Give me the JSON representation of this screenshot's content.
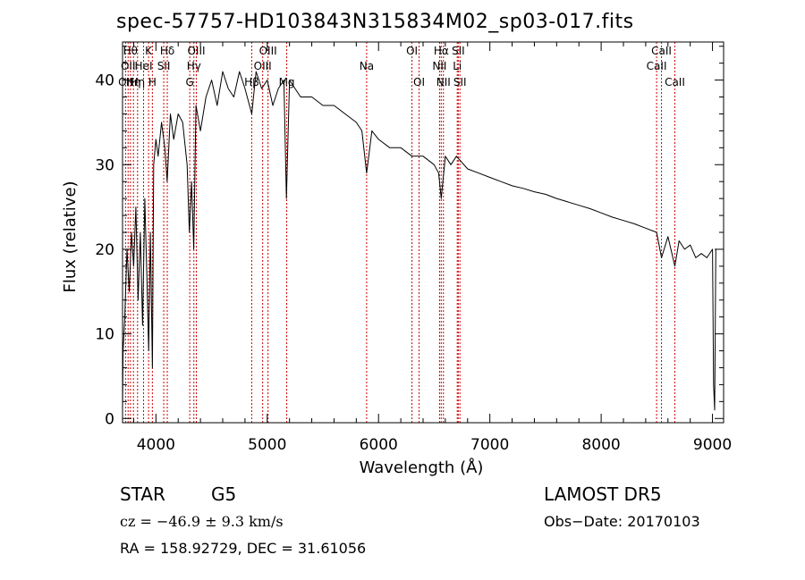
{
  "header": {
    "title": "spec-57757-HD103843N315834M02_sp03-017.fits"
  },
  "footer": {
    "class_label": "STAR",
    "subclass": "G5",
    "survey": "LAMOST DR5",
    "cz": "cz = −46.9 ± 9.3 km/s",
    "obs_date": "Obs−Date: 20170103",
    "coords": "RA = 158.92729, DEC =  31.61056"
  },
  "colors": {
    "line_marker": "#cc0000",
    "spectrum": "#000000",
    "axes": "#000000"
  },
  "chart_data": {
    "type": "line",
    "xlabel": "Wavelength (Å)",
    "ylabel": "Flux (relative)",
    "xlim": [
      3700,
      9100
    ],
    "ylim": [
      -0.5,
      44.5
    ],
    "xticks": [
      4000,
      5000,
      6000,
      7000,
      8000,
      9000
    ],
    "yticks": [
      0,
      10,
      20,
      30,
      40
    ],
    "grid": false,
    "series": [
      {
        "x": [
          3700,
          3705,
          3720,
          3740,
          3760,
          3780,
          3800,
          3820,
          3840,
          3860,
          3880,
          3900,
          3920,
          3935,
          3950,
          3968,
          3980,
          4000,
          4020,
          4050,
          4080,
          4101,
          4130,
          4160,
          4200,
          4240,
          4280,
          4300,
          4320,
          4340,
          4360,
          4400,
          4450,
          4500,
          4550,
          4600,
          4650,
          4700,
          4750,
          4800,
          4861,
          4900,
          4950,
          5000,
          5050,
          5100,
          5150,
          5172,
          5200,
          5250,
          5300,
          5400,
          5500,
          5600,
          5700,
          5800,
          5850,
          5893,
          5940,
          6000,
          6100,
          6200,
          6300,
          6400,
          6500,
          6540,
          6563,
          6600,
          6650,
          6700,
          6800,
          6900,
          7000,
          7100,
          7200,
          7300,
          7400,
          7500,
          7600,
          7700,
          7800,
          7900,
          8000,
          8100,
          8200,
          8300,
          8400,
          8498,
          8542,
          8600,
          8662,
          8700,
          8750,
          8800,
          8850,
          8900,
          8950,
          9000,
          9010,
          9020,
          9030
        ],
        "values": [
          1,
          8,
          12,
          20,
          15,
          22,
          18,
          25,
          14,
          22,
          11,
          26,
          16,
          8,
          22,
          6,
          30,
          33,
          31,
          35,
          32,
          28,
          36,
          33,
          36,
          35,
          30,
          22,
          28,
          20,
          37,
          34,
          38,
          40,
          37,
          41,
          39,
          38,
          41,
          39,
          36,
          41,
          39,
          40,
          37,
          39,
          40,
          26,
          40,
          39,
          38,
          38,
          37,
          37,
          36,
          35,
          34,
          29,
          34,
          33,
          32,
          32,
          31,
          31,
          30,
          29,
          26,
          31,
          30,
          31,
          29.5,
          29,
          28.5,
          28,
          27.5,
          27.2,
          26.8,
          26.5,
          26,
          25.6,
          25.2,
          24.8,
          24.3,
          23.8,
          23.4,
          23,
          22.5,
          22,
          19,
          21.5,
          18,
          21,
          20,
          20.5,
          19,
          19.5,
          19,
          20,
          4,
          1,
          20
        ]
      }
    ],
    "line_markers": [
      {
        "wavelength": 3727,
        "label": "OII",
        "row": 2
      },
      {
        "wavelength": 3750,
        "label": "OII",
        "row": 1
      },
      {
        "wavelength": 3771,
        "label": "Hθ",
        "row": 0
      },
      {
        "wavelength": 3798,
        "label": "Hη",
        "row": 2
      },
      {
        "wavelength": 3835,
        "label": "Hη",
        "row": 2
      },
      {
        "wavelength": 3889,
        "label": "HeI",
        "row": 1
      },
      {
        "wavelength": 3934,
        "label": "K",
        "row": 0
      },
      {
        "wavelength": 3968,
        "label": "H",
        "row": 2
      },
      {
        "wavelength": 4070,
        "label": "SII",
        "row": 1
      },
      {
        "wavelength": 4102,
        "label": "Hδ",
        "row": 0
      },
      {
        "wavelength": 4304,
        "label": "G",
        "row": 2
      },
      {
        "wavelength": 4341,
        "label": "Hγ",
        "row": 1
      },
      {
        "wavelength": 4363,
        "label": "OIII",
        "row": 0
      },
      {
        "wavelength": 4861,
        "label": "Hβ",
        "row": 2
      },
      {
        "wavelength": 4959,
        "label": "OIII",
        "row": 1
      },
      {
        "wavelength": 5007,
        "label": "OIII",
        "row": 0
      },
      {
        "wavelength": 5175,
        "label": "Mg",
        "row": 2
      },
      {
        "wavelength": 5893,
        "label": "Na",
        "row": 1
      },
      {
        "wavelength": 6300,
        "label": "OI",
        "row": 0
      },
      {
        "wavelength": 6364,
        "label": "OI",
        "row": 2
      },
      {
        "wavelength": 6548,
        "label": "NII",
        "row": 1
      },
      {
        "wavelength": 6563,
        "label": "Hα",
        "row": 0
      },
      {
        "wavelength": 6583,
        "label": "NII",
        "row": 2
      },
      {
        "wavelength": 6707,
        "label": "Li",
        "row": 1
      },
      {
        "wavelength": 6716,
        "label": "SII",
        "row": 0
      },
      {
        "wavelength": 6731,
        "label": "SII",
        "row": 2
      },
      {
        "wavelength": 8498,
        "label": "CaII",
        "row": 1
      },
      {
        "wavelength": 8542,
        "label": "CaII",
        "row": 0
      },
      {
        "wavelength": 8662,
        "label": "CaII",
        "row": 2
      }
    ]
  }
}
